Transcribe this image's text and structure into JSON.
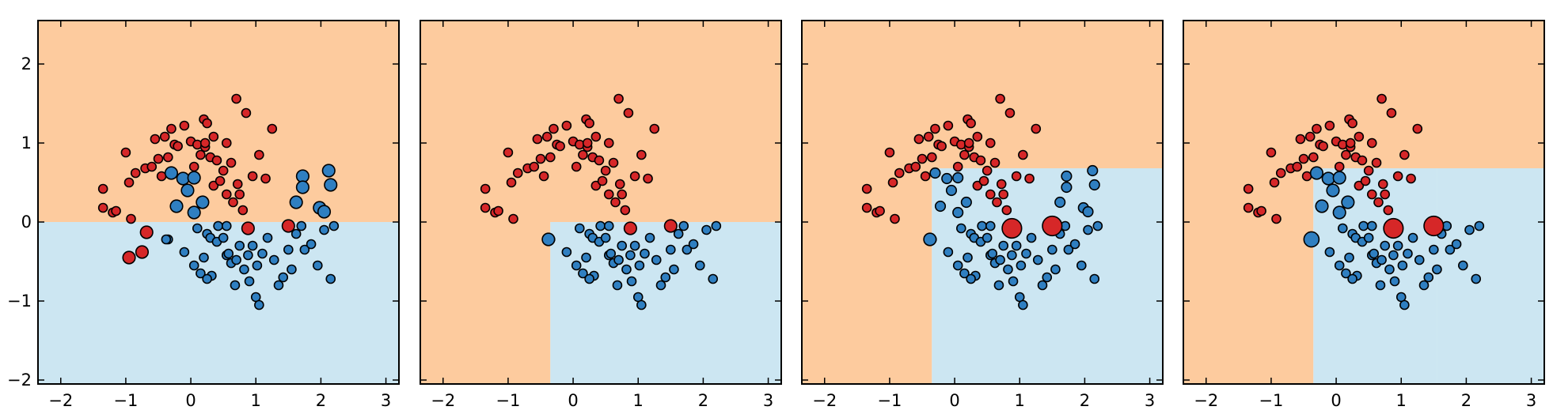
{
  "chart_data": [
    {
      "type": "scatter",
      "title": "",
      "xlabel": "",
      "ylabel": "",
      "xlim": [
        -2.35,
        3.2
      ],
      "ylim": [
        -2.05,
        2.55
      ],
      "xticks": [
        -2,
        -1,
        0,
        1,
        2,
        3
      ],
      "yticks": [
        -2,
        -1,
        0,
        1,
        2
      ],
      "xtick_labels": [
        "−2",
        "−1",
        "0",
        "1",
        "2",
        "3"
      ],
      "ytick_labels": [
        "−2",
        "−1",
        "0",
        "1",
        "2"
      ],
      "grid": false,
      "regions": [
        {
          "class": "red",
          "x": [
            -2.35,
            3.2
          ],
          "y": [
            0.0,
            2.55
          ]
        },
        {
          "class": "blue",
          "x": [
            -2.35,
            3.2
          ],
          "y": [
            -2.05,
            0.0
          ]
        }
      ],
      "highlighted_points": [
        {
          "class": "red",
          "x": -0.95,
          "y": -0.45,
          "weight": 2
        },
        {
          "class": "red",
          "x": -0.75,
          "y": -0.38,
          "weight": 2
        },
        {
          "class": "red",
          "x": -0.68,
          "y": -0.13,
          "weight": 2
        },
        {
          "class": "red",
          "x": 0.88,
          "y": -0.08,
          "weight": 2
        },
        {
          "class": "red",
          "x": 1.5,
          "y": -0.05,
          "weight": 2
        },
        {
          "class": "blue",
          "x": -0.38,
          "y": -0.22,
          "weight": 1
        },
        {
          "class": "blue",
          "x": -0.3,
          "y": 0.62,
          "weight": 2
        },
        {
          "class": "blue",
          "x": -0.12,
          "y": 0.55,
          "weight": 2
        },
        {
          "class": "blue",
          "x": 0.05,
          "y": 0.56,
          "weight": 2
        },
        {
          "class": "blue",
          "x": -0.05,
          "y": 0.4,
          "weight": 2
        },
        {
          "class": "blue",
          "x": 0.18,
          "y": 0.25,
          "weight": 2
        },
        {
          "class": "blue",
          "x": -0.22,
          "y": 0.2,
          "weight": 2
        },
        {
          "class": "blue",
          "x": 0.05,
          "y": 0.12,
          "weight": 2
        },
        {
          "class": "blue",
          "x": 1.72,
          "y": 0.58,
          "weight": 2
        },
        {
          "class": "blue",
          "x": 1.72,
          "y": 0.44,
          "weight": 2
        },
        {
          "class": "blue",
          "x": 2.12,
          "y": 0.65,
          "weight": 2
        },
        {
          "class": "blue",
          "x": 2.15,
          "y": 0.47,
          "weight": 2
        },
        {
          "class": "blue",
          "x": 1.62,
          "y": 0.25,
          "weight": 2
        },
        {
          "class": "blue",
          "x": 1.98,
          "y": 0.18,
          "weight": 2
        },
        {
          "class": "blue",
          "x": 2.05,
          "y": 0.13,
          "weight": 2
        }
      ]
    },
    {
      "type": "scatter",
      "title": "",
      "xlabel": "",
      "ylabel": "",
      "xlim": [
        -2.35,
        3.2
      ],
      "ylim": [
        -2.05,
        2.55
      ],
      "xticks": [
        -2,
        -1,
        0,
        1,
        2,
        3
      ],
      "yticks": [
        -2,
        -1,
        0,
        1,
        2
      ],
      "xtick_labels": [
        "−2",
        "−1",
        "0",
        "1",
        "2",
        "3"
      ],
      "ytick_labels": [
        "−2",
        "−1",
        "0",
        "1",
        "2"
      ],
      "grid": false,
      "regions": [
        {
          "class": "red",
          "x": [
            -2.35,
            3.2
          ],
          "y": [
            0.0,
            2.55
          ]
        },
        {
          "class": "red",
          "x": [
            -2.35,
            -0.35
          ],
          "y": [
            -2.05,
            0.0
          ]
        },
        {
          "class": "blue",
          "x": [
            -0.35,
            3.2
          ],
          "y": [
            -2.05,
            0.0
          ]
        }
      ],
      "highlighted_points": [
        {
          "class": "red",
          "x": 0.88,
          "y": -0.08,
          "weight": 2
        },
        {
          "class": "red",
          "x": 1.5,
          "y": -0.05,
          "weight": 2
        },
        {
          "class": "blue",
          "x": -0.38,
          "y": -0.22,
          "weight": 2
        }
      ]
    },
    {
      "type": "scatter",
      "title": "",
      "xlabel": "",
      "ylabel": "",
      "xlim": [
        -2.35,
        3.2
      ],
      "ylim": [
        -2.05,
        2.55
      ],
      "xticks": [
        -2,
        -1,
        0,
        1,
        2,
        3
      ],
      "yticks": [
        -2,
        -1,
        0,
        1,
        2
      ],
      "xtick_labels": [
        "−2",
        "−1",
        "0",
        "1",
        "2",
        "3"
      ],
      "ytick_labels": [
        "−2",
        "−1",
        "0",
        "1",
        "2"
      ],
      "grid": false,
      "regions": [
        {
          "class": "red",
          "x": [
            -2.35,
            3.2
          ],
          "y": [
            0.68,
            2.55
          ]
        },
        {
          "class": "red",
          "x": [
            -2.35,
            -0.35
          ],
          "y": [
            -2.05,
            0.68
          ]
        },
        {
          "class": "blue",
          "x": [
            -0.35,
            3.2
          ],
          "y": [
            -2.05,
            0.68
          ]
        }
      ],
      "highlighted_points": [
        {
          "class": "red",
          "x": 0.88,
          "y": -0.08,
          "weight": 5
        },
        {
          "class": "red",
          "x": 1.5,
          "y": -0.05,
          "weight": 5
        },
        {
          "class": "blue",
          "x": -0.38,
          "y": -0.22,
          "weight": 2
        },
        {
          "class": "blue",
          "x": -0.3,
          "y": 0.62,
          "weight": 1.3
        },
        {
          "class": "blue",
          "x": -0.12,
          "y": 0.55,
          "weight": 1.3
        },
        {
          "class": "blue",
          "x": 0.05,
          "y": 0.56,
          "weight": 1.3
        },
        {
          "class": "blue",
          "x": -0.05,
          "y": 0.4,
          "weight": 1.3
        },
        {
          "class": "blue",
          "x": 0.18,
          "y": 0.25,
          "weight": 1.3
        },
        {
          "class": "blue",
          "x": -0.22,
          "y": 0.2,
          "weight": 1.3
        },
        {
          "class": "blue",
          "x": 0.05,
          "y": 0.12,
          "weight": 1.3
        },
        {
          "class": "blue",
          "x": 1.72,
          "y": 0.58,
          "weight": 1.3
        },
        {
          "class": "blue",
          "x": 1.72,
          "y": 0.44,
          "weight": 1.3
        },
        {
          "class": "blue",
          "x": 2.12,
          "y": 0.65,
          "weight": 1.3
        },
        {
          "class": "blue",
          "x": 2.15,
          "y": 0.47,
          "weight": 1.3
        },
        {
          "class": "blue",
          "x": 1.62,
          "y": 0.25,
          "weight": 1.3
        },
        {
          "class": "blue",
          "x": 1.98,
          "y": 0.18,
          "weight": 1.3
        },
        {
          "class": "blue",
          "x": 2.05,
          "y": 0.13,
          "weight": 1.3
        }
      ]
    },
    {
      "type": "scatter",
      "title": "",
      "xlabel": "",
      "ylabel": "",
      "xlim": [
        -2.35,
        3.2
      ],
      "ylim": [
        -2.05,
        2.55
      ],
      "xticks": [
        -2,
        -1,
        0,
        1,
        2,
        3
      ],
      "yticks": [
        -2,
        -1,
        0,
        1,
        2
      ],
      "xtick_labels": [
        "−2",
        "−1",
        "0",
        "1",
        "2",
        "3"
      ],
      "ytick_labels": [
        "−2",
        "−1",
        "0",
        "1",
        "2"
      ],
      "grid": false,
      "regions": [
        {
          "class": "red",
          "x": [
            -2.35,
            3.2
          ],
          "y": [
            0.68,
            2.55
          ]
        },
        {
          "class": "red",
          "x": [
            -2.35,
            -0.35
          ],
          "y": [
            -2.05,
            0.68
          ]
        },
        {
          "class": "red",
          "x": [
            1.55,
            3.2
          ],
          "y": [
            0.68,
            2.55
          ]
        },
        {
          "class": "blue",
          "x": [
            -0.35,
            1.55
          ],
          "y": [
            -2.05,
            0.68
          ]
        },
        {
          "class": "blue",
          "x": [
            1.55,
            3.2
          ],
          "y": [
            -2.05,
            0.68
          ]
        }
      ],
      "highlighted_points": [
        {
          "class": "red",
          "x": 0.88,
          "y": -0.08,
          "weight": 5
        },
        {
          "class": "red",
          "x": 1.5,
          "y": -0.05,
          "weight": 5
        },
        {
          "class": "blue",
          "x": -0.38,
          "y": -0.22,
          "weight": 3
        },
        {
          "class": "blue",
          "x": -0.3,
          "y": 0.62,
          "weight": 2
        },
        {
          "class": "blue",
          "x": -0.12,
          "y": 0.55,
          "weight": 2
        },
        {
          "class": "blue",
          "x": 0.05,
          "y": 0.56,
          "weight": 2
        },
        {
          "class": "blue",
          "x": -0.05,
          "y": 0.4,
          "weight": 2
        },
        {
          "class": "blue",
          "x": 0.18,
          "y": 0.25,
          "weight": 2
        },
        {
          "class": "blue",
          "x": -0.22,
          "y": 0.2,
          "weight": 2
        },
        {
          "class": "blue",
          "x": 0.05,
          "y": 0.12,
          "weight": 2
        }
      ]
    }
  ],
  "points": {
    "red": [
      [
        -1.35,
        0.42
      ],
      [
        -1.35,
        0.18
      ],
      [
        -1.2,
        0.12
      ],
      [
        -1.15,
        0.14
      ],
      [
        -1.0,
        0.88
      ],
      [
        -0.95,
        0.5
      ],
      [
        -0.92,
        0.04
      ],
      [
        -0.85,
        0.62
      ],
      [
        -0.7,
        0.68
      ],
      [
        -0.6,
        0.7
      ],
      [
        -0.55,
        1.05
      ],
      [
        -0.5,
        0.8
      ],
      [
        -0.45,
        0.58
      ],
      [
        -0.4,
        1.08
      ],
      [
        -0.35,
        0.82
      ],
      [
        -0.3,
        1.18
      ],
      [
        -0.25,
        0.98
      ],
      [
        -0.2,
        0.96
      ],
      [
        -0.1,
        1.22
      ],
      [
        0.0,
        1.02
      ],
      [
        0.05,
        0.7
      ],
      [
        0.1,
        0.98
      ],
      [
        0.15,
        0.85
      ],
      [
        0.2,
        1.3
      ],
      [
        0.25,
        1.25
      ],
      [
        0.22,
        0.95
      ],
      [
        0.3,
        0.82
      ],
      [
        0.35,
        1.08
      ],
      [
        0.35,
        0.46
      ],
      [
        0.45,
        0.52
      ],
      [
        0.5,
        0.65
      ],
      [
        0.55,
        0.35
      ],
      [
        0.55,
        1.0
      ],
      [
        0.62,
        0.75
      ],
      [
        0.65,
        0.25
      ],
      [
        0.7,
        1.56
      ],
      [
        0.72,
        0.48
      ],
      [
        0.75,
        0.35
      ],
      [
        0.8,
        0.15
      ],
      [
        0.85,
        1.38
      ],
      [
        0.95,
        0.58
      ],
      [
        1.05,
        0.85
      ],
      [
        1.15,
        0.55
      ],
      [
        1.25,
        1.18
      ],
      [
        0.22,
        1.0
      ],
      [
        0.4,
        0.78
      ]
    ],
    "blue": [
      [
        -0.35,
        -0.22
      ],
      [
        -0.1,
        -0.38
      ],
      [
        0.05,
        -0.55
      ],
      [
        0.1,
        -0.08
      ],
      [
        0.15,
        -0.65
      ],
      [
        0.2,
        -0.45
      ],
      [
        0.25,
        -0.15
      ],
      [
        0.3,
        -0.2
      ],
      [
        0.32,
        -0.68
      ],
      [
        0.4,
        -0.25
      ],
      [
        0.42,
        -0.05
      ],
      [
        0.5,
        -0.2
      ],
      [
        0.55,
        -0.42
      ],
      [
        0.58,
        -0.4
      ],
      [
        0.62,
        -0.52
      ],
      [
        0.68,
        -0.8
      ],
      [
        0.7,
        -0.48
      ],
      [
        0.75,
        -0.3
      ],
      [
        0.82,
        -0.6
      ],
      [
        0.88,
        -0.42
      ],
      [
        0.9,
        -0.75
      ],
      [
        0.95,
        -0.3
      ],
      [
        1.0,
        -0.95
      ],
      [
        1.02,
        -0.55
      ],
      [
        1.1,
        -0.4
      ],
      [
        1.18,
        -0.2
      ],
      [
        1.28,
        -0.48
      ],
      [
        1.35,
        -0.8
      ],
      [
        1.42,
        -0.7
      ],
      [
        1.5,
        -0.35
      ],
      [
        1.55,
        -0.6
      ],
      [
        1.62,
        -0.15
      ],
      [
        1.7,
        -0.05
      ],
      [
        1.75,
        -0.35
      ],
      [
        1.85,
        -0.28
      ],
      [
        1.95,
        -0.55
      ],
      [
        2.05,
        -0.1
      ],
      [
        2.15,
        -0.72
      ],
      [
        2.2,
        -0.05
      ],
      [
        0.55,
        -0.05
      ],
      [
        1.05,
        -1.05
      ],
      [
        0.25,
        -0.72
      ]
    ]
  },
  "colors": {
    "red_region": "#fdcb9e",
    "blue_region": "#cce6f2",
    "red_point": "#d62728",
    "blue_point": "#2f7fc1"
  }
}
